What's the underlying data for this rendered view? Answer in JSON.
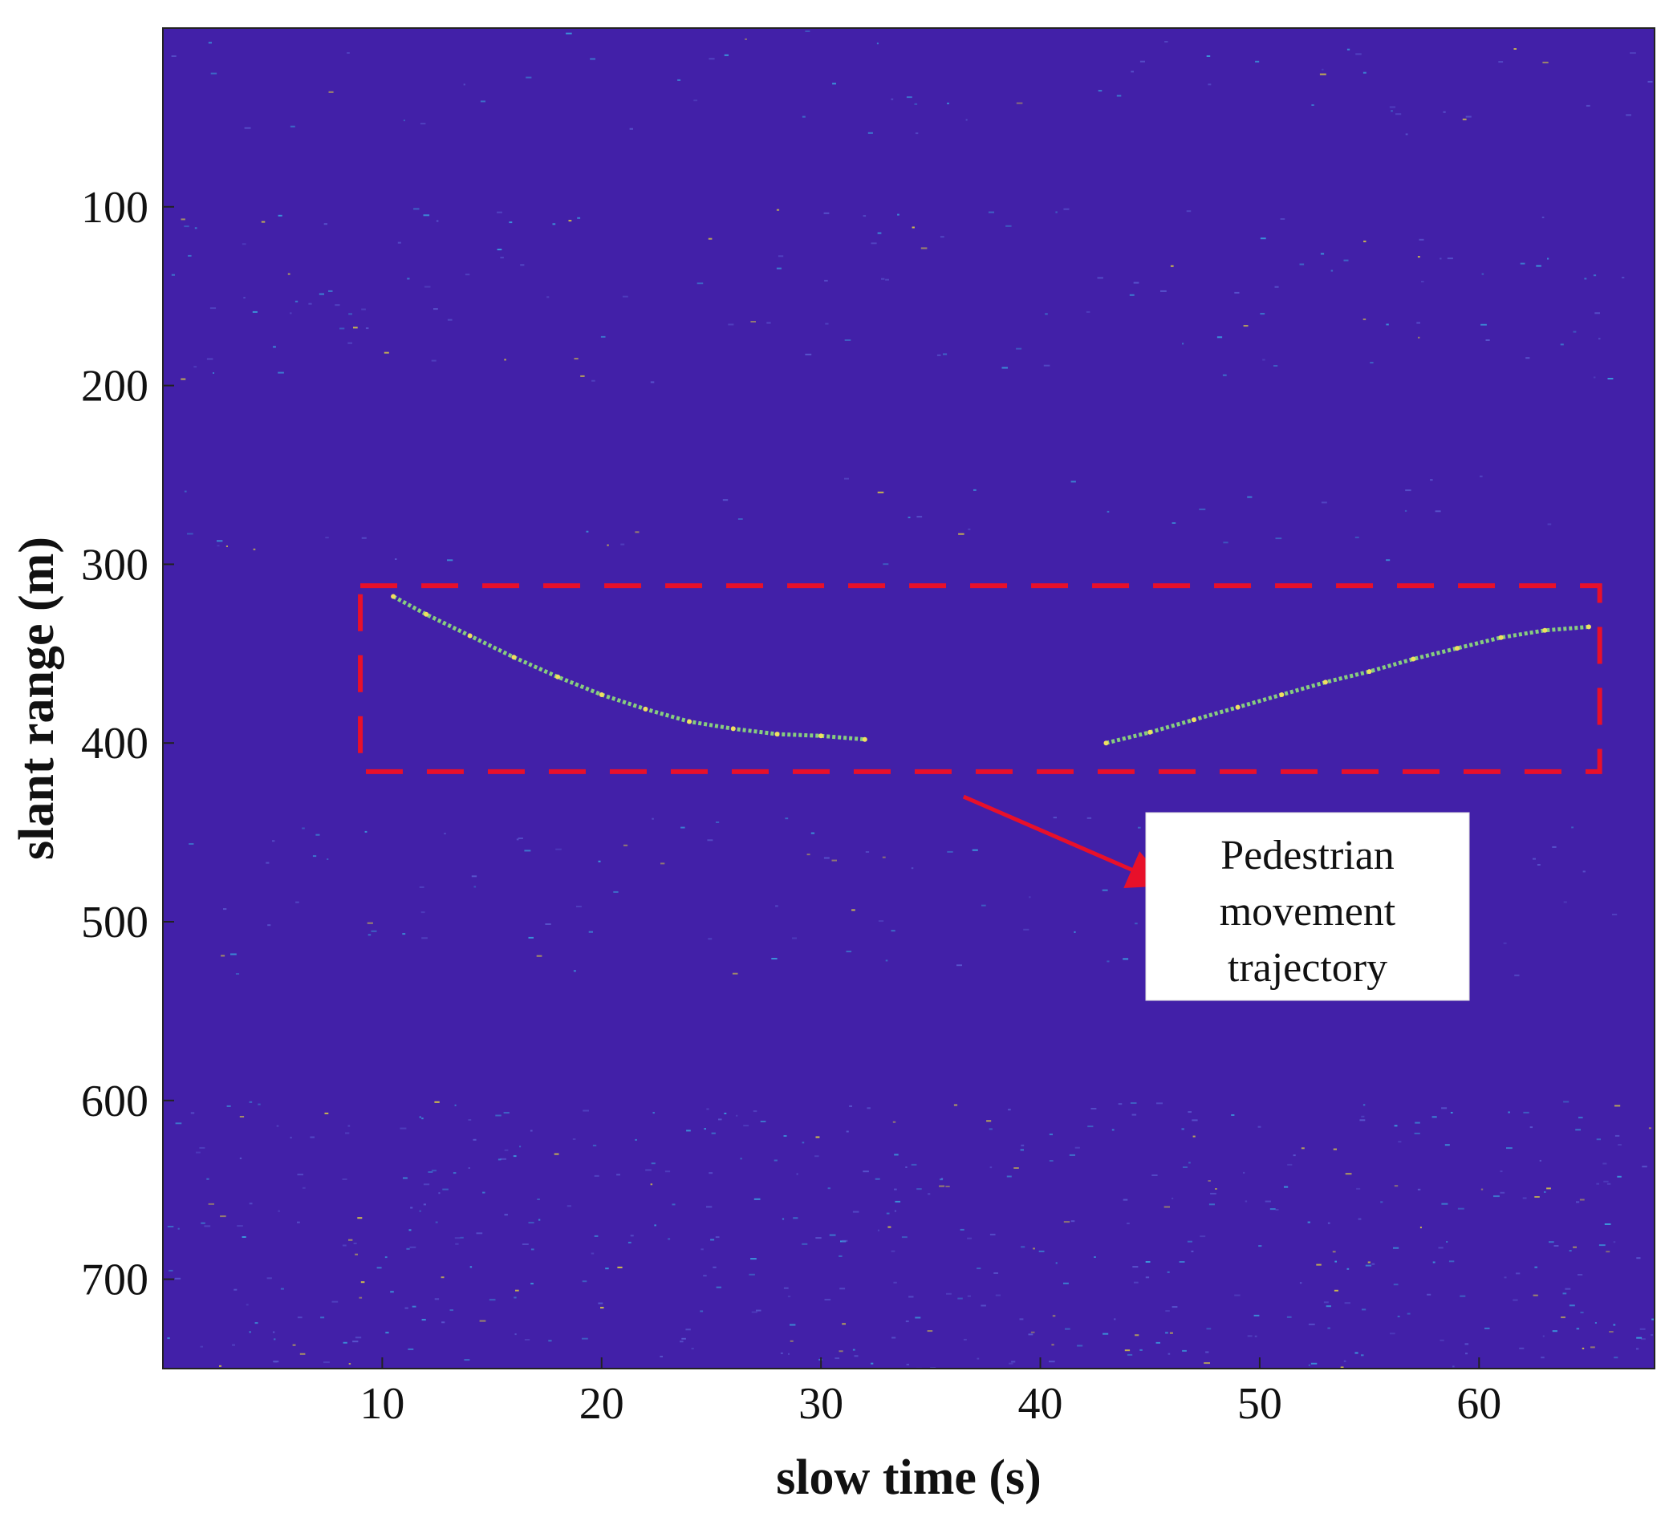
{
  "chart_data": {
    "type": "heatmap",
    "title": "",
    "xlabel": "slow time (s)",
    "ylabel": "slant range (m)",
    "xlim": [
      0,
      68
    ],
    "ylim": [
      750,
      0
    ],
    "y_reversed": true,
    "xticks": [
      10,
      20,
      30,
      40,
      50,
      60
    ],
    "yticks": [
      100,
      200,
      300,
      400,
      500,
      600,
      700
    ],
    "colors": {
      "background": "#4220a8",
      "trajectory": "#8fe07a",
      "noise": "#3aa3e0",
      "annotation": "#e8102a"
    },
    "series": [
      {
        "name": "Pedestrian movement trajectory",
        "segments": [
          {
            "x": [
              10.5,
              12,
              14,
              16,
              18,
              20,
              22,
              24,
              26,
              28,
              30,
              32
            ],
            "y": [
              318,
              328,
              340,
              352,
              363,
              373,
              381,
              388,
              392,
              395,
              396,
              398
            ]
          },
          {
            "x": [
              43,
              45,
              47,
              49,
              51,
              53,
              55,
              57,
              59,
              61,
              63,
              65
            ],
            "y": [
              400,
              394,
              387,
              380,
              373,
              366,
              360,
              353,
              347,
              341,
              337,
              335
            ]
          }
        ]
      }
    ],
    "annotations": {
      "region_box": {
        "x": [
          9,
          65.5
        ],
        "y": [
          312,
          416
        ],
        "style": "dashed"
      },
      "arrow": {
        "from": [
          36.5,
          430
        ],
        "to": [
          45.5,
          478
        ]
      },
      "callout_lines": [
        "Pedestrian",
        "movement",
        "trajectory"
      ]
    }
  }
}
